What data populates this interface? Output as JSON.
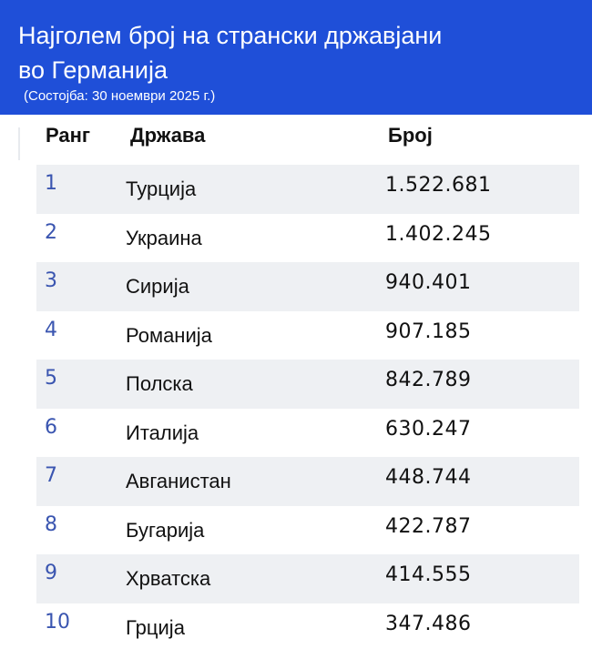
{
  "header": {
    "title_line1": "Најголем број на странски државјани",
    "title_line2": "во Германија",
    "subtitle": "(Состојба: 30 ноември 2025 г.)",
    "background": "#1f4fd8"
  },
  "table": {
    "columns": [
      "Ранг",
      "Држава",
      "Број"
    ],
    "rows": [
      {
        "rank": "1",
        "country": "Турција",
        "count": "1.522.681"
      },
      {
        "rank": "2",
        "country": "Украина",
        "count": "1.402.245"
      },
      {
        "rank": "3",
        "country": "Сирија",
        "count": "940.401"
      },
      {
        "rank": "4",
        "country": "Романија",
        "count": "907.185"
      },
      {
        "rank": "5",
        "country": "Полска",
        "count": "842.789"
      },
      {
        "rank": "6",
        "country": "Италија",
        "count": "630.247"
      },
      {
        "rank": "7",
        "country": "Авганистан",
        "count": "448.744"
      },
      {
        "rank": "8",
        "country": "Бугарија",
        "count": "422.787"
      },
      {
        "rank": "9",
        "country": "Хрватска",
        "count": "414.555"
      },
      {
        "rank": "10",
        "country": "Грција",
        "count": "347.486"
      }
    ],
    "rank_color": "#3a55b0",
    "stripe_color": "#eef0f3"
  }
}
